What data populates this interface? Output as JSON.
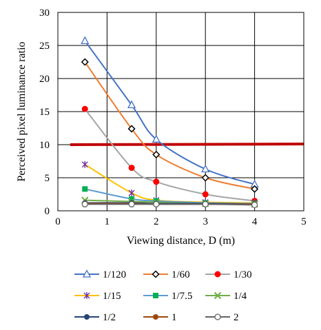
{
  "chart_data": {
    "type": "line",
    "xlabel": "Viewing distance, D (m)",
    "ylabel": "Perceived pixel luminance ratio",
    "xlim": [
      0,
      5
    ],
    "ylim": [
      0,
      30
    ],
    "xticks": [
      "0",
      "1",
      "2",
      "3",
      "4",
      "5"
    ],
    "yticks": [
      "0",
      "5",
      "10",
      "15",
      "20",
      "25",
      "30"
    ],
    "grid": "major vertical and horizontal",
    "legend_position": "bottom",
    "smooth": true,
    "x": [
      0.55,
      1.5,
      2.0,
      3.0,
      4.0
    ],
    "series": [
      {
        "name": "1/120",
        "values": [
          25.7,
          16.0,
          10.8,
          6.3,
          4.0
        ],
        "color": "#4472C4",
        "marker": "triangle-open"
      },
      {
        "name": "1/60",
        "values": [
          22.5,
          12.4,
          8.5,
          5.0,
          3.3
        ],
        "color": "#ED7D31",
        "marker": "diamond-open"
      },
      {
        "name": "1/30",
        "values": [
          15.4,
          6.5,
          4.4,
          2.5,
          1.5
        ],
        "color": "#A5A5A5",
        "marker": "circle-filled-red"
      },
      {
        "name": "1/15",
        "values": [
          7.0,
          2.7,
          1.6,
          1.3,
          1.2
        ],
        "color": "#FFC000",
        "marker": "star"
      },
      {
        "name": "1/7.5",
        "values": [
          3.3,
          1.8,
          1.5,
          1.2,
          1.1
        ],
        "color": "#5B9BD5",
        "marker": "square-filled"
      },
      {
        "name": "1/4",
        "values": [
          1.6,
          1.4,
          1.3,
          1.1,
          1.0
        ],
        "color": "#70AD47",
        "marker": "x"
      },
      {
        "name": "1/2",
        "values": [
          1.2,
          1.2,
          1.1,
          1.1,
          1.0
        ],
        "color": "#264478",
        "marker": "circle-filled"
      },
      {
        "name": "1",
        "values": [
          1.1,
          1.1,
          1.0,
          1.0,
          1.0
        ],
        "color": "#9E480E",
        "marker": "circle-filled"
      },
      {
        "name": "2",
        "values": [
          1.0,
          1.0,
          1.0,
          1.0,
          0.9
        ],
        "color": "#636363",
        "marker": "circle-open"
      }
    ],
    "reference_line": {
      "x": [
        0.25,
        5.0
      ],
      "values": [
        10.0,
        10.1
      ],
      "color": "#C00000"
    }
  }
}
